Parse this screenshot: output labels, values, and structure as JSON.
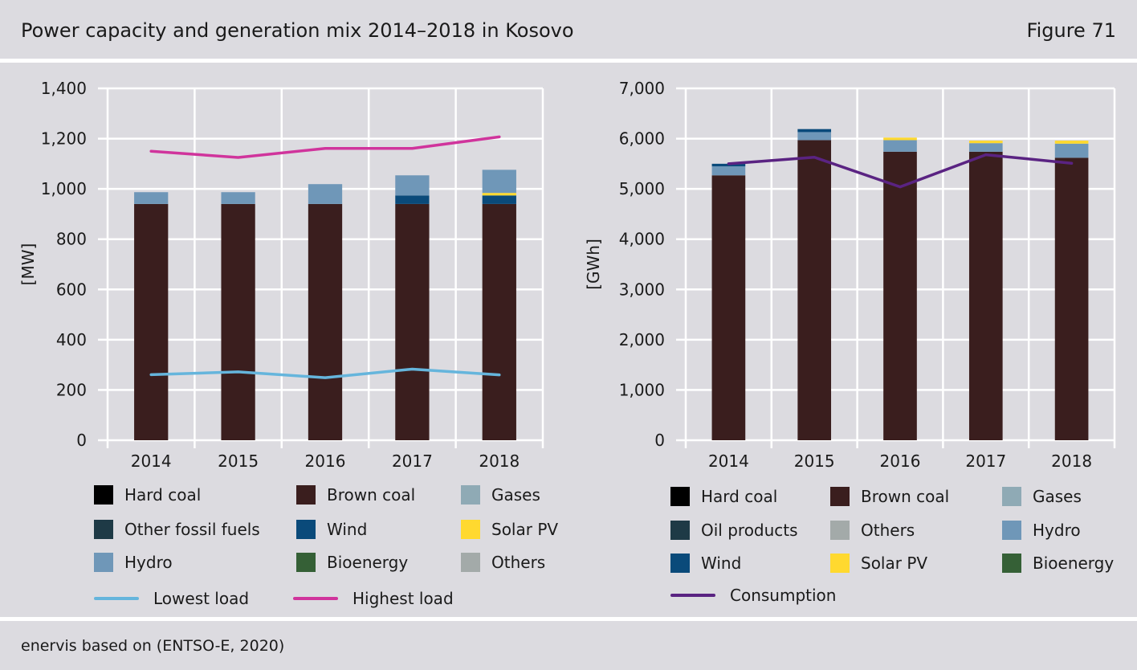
{
  "header": {
    "title": "Power capacity and generation mix 2014–2018 in Kosovo",
    "figure": "Figure 71"
  },
  "source": "enervis based on (ENTSO-E, 2020)",
  "chart_data": [
    {
      "type": "bar",
      "stacked": true,
      "ylabel": "[MW]",
      "ylim": [
        0,
        1400
      ],
      "yticks": [
        0,
        200,
        400,
        600,
        800,
        1000,
        1200,
        1400
      ],
      "ytick_labels": [
        "0",
        "200",
        "400",
        "600",
        "800",
        "1,000",
        "1,200",
        "1,400"
      ],
      "categories": [
        "2014",
        "2015",
        "2016",
        "2017",
        "2018"
      ],
      "grid": true,
      "series": [
        {
          "name": "Hard coal",
          "color": "#000000",
          "values": [
            0,
            0,
            0,
            0,
            0
          ]
        },
        {
          "name": "Brown coal",
          "color": "#3a1e1e",
          "values": [
            940,
            940,
            940,
            940,
            940
          ]
        },
        {
          "name": "Gases",
          "color": "#8faab5",
          "values": [
            0,
            0,
            0,
            0,
            0
          ]
        },
        {
          "name": "Other fossil fuels",
          "color": "#1e3a46",
          "values": [
            0,
            0,
            0,
            0,
            0
          ]
        },
        {
          "name": "Wind",
          "color": "#0a4a7a",
          "values": [
            0,
            0,
            0,
            34,
            34
          ]
        },
        {
          "name": "Solar PV",
          "color": "#ffd92f",
          "values": [
            0,
            0,
            0,
            0,
            10
          ]
        },
        {
          "name": "Hydro",
          "color": "#6f97b8",
          "values": [
            47,
            47,
            79,
            80,
            92
          ]
        },
        {
          "name": "Bioenergy",
          "color": "#356036",
          "values": [
            0,
            0,
            0,
            0,
            0
          ]
        },
        {
          "name": "Others",
          "color": "#a3aaa9",
          "values": [
            0,
            0,
            0,
            0,
            0
          ]
        }
      ],
      "lines": [
        {
          "name": "Lowest load",
          "color": "#65b5dc",
          "values": [
            261,
            272,
            249,
            283,
            260
          ]
        },
        {
          "name": "Highest load",
          "color": "#d0349c",
          "values": [
            1150,
            1125,
            1161,
            1161,
            1207
          ]
        }
      ],
      "legend": {
        "placement": "bottom",
        "items": [
          "Hard coal",
          "Brown coal",
          "Gases",
          "Other fossil fuels",
          "Wind",
          "Solar PV",
          "Hydro",
          "Bioenergy",
          "Others"
        ],
        "line_items": [
          "Lowest load",
          "Highest load"
        ]
      }
    },
    {
      "type": "bar",
      "stacked": true,
      "ylabel": "[GWh]",
      "ylim": [
        0,
        7000
      ],
      "yticks": [
        0,
        1000,
        2000,
        3000,
        4000,
        5000,
        6000,
        7000
      ],
      "ytick_labels": [
        "0",
        "1,000",
        "2,000",
        "3,000",
        "4,000",
        "5,000",
        "6,000",
        "7,000"
      ],
      "categories": [
        "2014",
        "2015",
        "2016",
        "2017",
        "2018"
      ],
      "grid": true,
      "series": [
        {
          "name": "Hard coal",
          "color": "#000000",
          "values": [
            0,
            0,
            0,
            0,
            0
          ]
        },
        {
          "name": "Brown coal",
          "color": "#3a1e1e",
          "values": [
            5270,
            5970,
            5740,
            5740,
            5620
          ]
        },
        {
          "name": "Gases",
          "color": "#8faab5",
          "values": [
            0,
            0,
            0,
            0,
            0
          ]
        },
        {
          "name": "Oil products",
          "color": "#1e3a46",
          "values": [
            0,
            0,
            0,
            0,
            0
          ]
        },
        {
          "name": "Others",
          "color": "#a3aaa9",
          "values": [
            0,
            0,
            0,
            0,
            0
          ]
        },
        {
          "name": "Hydro",
          "color": "#6f97b8",
          "values": [
            180,
            160,
            230,
            170,
            280
          ]
        },
        {
          "name": "Wind",
          "color": "#0a4a7a",
          "values": [
            50,
            60,
            0,
            0,
            0
          ]
        },
        {
          "name": "Solar PV",
          "color": "#ffd92f",
          "values": [
            0,
            0,
            50,
            50,
            60
          ]
        },
        {
          "name": "Bioenergy",
          "color": "#356036",
          "values": [
            0,
            0,
            0,
            0,
            0
          ]
        }
      ],
      "lines": [
        {
          "name": "Consumption",
          "color": "#5a2382",
          "values": [
            5500,
            5630,
            5040,
            5680,
            5510
          ]
        }
      ],
      "legend": {
        "placement": "bottom",
        "items": [
          "Hard coal",
          "Brown coal",
          "Gases",
          "Oil products",
          "Others",
          "Hydro",
          "Wind",
          "Solar PV",
          "Bioenergy"
        ],
        "line_items": [
          "Consumption"
        ]
      }
    }
  ]
}
